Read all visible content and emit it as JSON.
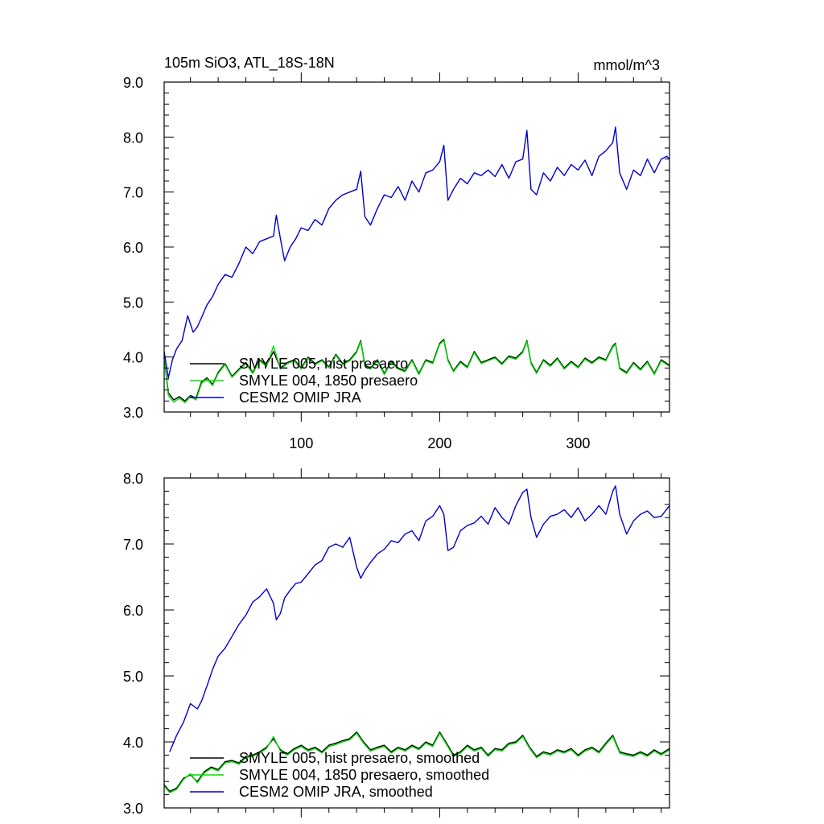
{
  "figure": {
    "title": "105m SiO3, ATL_18S-18N",
    "units": "mmol/m^3"
  },
  "colors": {
    "smyle005": "#000000",
    "smyle004": "#00dd00",
    "omip": "#0000cc"
  },
  "chart_data": [
    {
      "type": "line",
      "panel": "top",
      "xlim": [
        1,
        366
      ],
      "ylim": [
        3.0,
        9.0
      ],
      "x_ticks": [
        100,
        200,
        300
      ],
      "x_tick_labels": [
        "100",
        "200",
        "300"
      ],
      "y_ticks": [
        3,
        4,
        5,
        6,
        7,
        8,
        9
      ],
      "y_tick_labels": [
        "3.0",
        "4.0",
        "5.0",
        "6.0",
        "7.0",
        "8.0",
        "9.0"
      ],
      "legend_position": "lower-left",
      "series": [
        {
          "name": "SMYLE 005, hist presaero",
          "color_key": "smyle005",
          "x": [
            1,
            4,
            8,
            12,
            16,
            20,
            24,
            28,
            32,
            36,
            40,
            45,
            50,
            55,
            60,
            65,
            70,
            75,
            80,
            85,
            90,
            95,
            100,
            105,
            110,
            115,
            120,
            125,
            130,
            135,
            140,
            143,
            146,
            150,
            155,
            160,
            165,
            170,
            175,
            180,
            185,
            190,
            195,
            200,
            203,
            206,
            210,
            215,
            220,
            225,
            230,
            235,
            240,
            245,
            250,
            255,
            260,
            263,
            266,
            270,
            275,
            280,
            285,
            290,
            295,
            300,
            305,
            310,
            315,
            320,
            325,
            327,
            330,
            335,
            340,
            345,
            350,
            355,
            360,
            366
          ],
          "y": [
            4.0,
            3.35,
            3.22,
            3.28,
            3.2,
            3.3,
            3.25,
            3.55,
            3.62,
            3.5,
            3.72,
            3.88,
            3.65,
            3.78,
            3.9,
            3.72,
            3.95,
            3.85,
            4.1,
            3.8,
            3.9,
            3.95,
            3.8,
            4.0,
            3.88,
            3.95,
            3.82,
            4.05,
            3.88,
            3.95,
            4.1,
            4.3,
            3.85,
            3.8,
            3.95,
            3.7,
            3.92,
            3.8,
            3.75,
            3.95,
            3.7,
            3.95,
            3.9,
            4.25,
            4.32,
            3.95,
            3.75,
            3.92,
            3.82,
            4.1,
            3.9,
            3.95,
            4.0,
            3.88,
            4.02,
            3.98,
            4.1,
            4.3,
            3.9,
            3.72,
            3.95,
            3.85,
            3.98,
            3.8,
            3.92,
            3.82,
            3.98,
            3.9,
            4.0,
            3.95,
            4.2,
            4.25,
            3.8,
            3.72,
            3.9,
            3.78,
            3.92,
            3.7,
            3.95,
            3.85
          ]
        },
        {
          "name": "SMYLE 004, 1850 presaero",
          "color_key": "smyle004",
          "x": [
            1,
            4,
            8,
            12,
            16,
            20,
            24,
            28,
            32,
            36,
            40,
            45,
            50,
            55,
            60,
            65,
            70,
            75,
            80,
            85,
            90,
            95,
            100,
            105,
            110,
            115,
            120,
            125,
            130,
            135,
            140,
            143,
            146,
            150,
            155,
            160,
            165,
            170,
            175,
            180,
            185,
            190,
            195,
            200,
            203,
            206,
            210,
            215,
            220,
            225,
            230,
            235,
            240,
            245,
            250,
            255,
            260,
            263,
            266,
            270,
            275,
            280,
            285,
            290,
            295,
            300,
            305,
            310,
            315,
            320,
            325,
            327,
            330,
            335,
            340,
            345,
            350,
            355,
            360,
            366
          ],
          "y": [
            4.0,
            3.3,
            3.18,
            3.25,
            3.17,
            3.28,
            3.22,
            3.52,
            3.6,
            3.48,
            3.7,
            3.86,
            3.63,
            3.76,
            3.88,
            3.7,
            3.93,
            3.83,
            4.2,
            3.78,
            3.88,
            3.93,
            3.78,
            3.98,
            3.86,
            3.93,
            3.8,
            4.03,
            3.86,
            3.93,
            4.08,
            4.28,
            3.83,
            3.78,
            3.93,
            3.68,
            3.9,
            3.78,
            3.73,
            3.93,
            3.68,
            3.93,
            3.88,
            4.23,
            4.3,
            3.93,
            3.73,
            3.9,
            3.8,
            4.08,
            3.88,
            3.93,
            3.98,
            3.86,
            4.0,
            3.96,
            4.08,
            4.28,
            3.88,
            3.7,
            3.93,
            3.83,
            3.96,
            3.78,
            3.9,
            3.8,
            3.96,
            3.88,
            3.98,
            3.93,
            4.18,
            4.23,
            3.78,
            3.7,
            3.88,
            3.76,
            3.9,
            3.68,
            3.93,
            3.83
          ]
        },
        {
          "name": "CESM2 OMIP JRA",
          "color_key": "omip",
          "x": [
            1,
            4,
            7,
            10,
            14,
            18,
            22,
            25,
            28,
            32,
            36,
            40,
            45,
            50,
            55,
            60,
            65,
            70,
            75,
            80,
            82,
            85,
            88,
            92,
            96,
            100,
            105,
            110,
            115,
            120,
            125,
            130,
            135,
            140,
            143,
            146,
            150,
            155,
            160,
            165,
            170,
            175,
            180,
            185,
            190,
            195,
            200,
            203,
            206,
            210,
            215,
            220,
            225,
            230,
            235,
            240,
            245,
            250,
            255,
            260,
            263,
            266,
            270,
            275,
            280,
            285,
            290,
            295,
            300,
            305,
            310,
            315,
            320,
            325,
            327,
            330,
            335,
            340,
            345,
            350,
            355,
            360,
            364,
            366
          ],
          "y": [
            4.1,
            3.62,
            3.95,
            4.15,
            4.3,
            4.75,
            4.45,
            4.55,
            4.72,
            4.95,
            5.1,
            5.32,
            5.5,
            5.45,
            5.7,
            6.0,
            5.88,
            6.1,
            6.15,
            6.2,
            6.58,
            6.15,
            5.75,
            6.0,
            6.15,
            6.35,
            6.3,
            6.5,
            6.4,
            6.7,
            6.85,
            6.95,
            7.0,
            7.05,
            7.38,
            6.55,
            6.4,
            6.7,
            6.95,
            6.9,
            7.1,
            6.85,
            7.2,
            7.0,
            7.35,
            7.4,
            7.55,
            7.85,
            6.85,
            7.05,
            7.25,
            7.15,
            7.35,
            7.3,
            7.4,
            7.28,
            7.5,
            7.25,
            7.55,
            7.6,
            8.12,
            7.05,
            6.95,
            7.35,
            7.2,
            7.45,
            7.3,
            7.5,
            7.4,
            7.58,
            7.3,
            7.65,
            7.75,
            7.9,
            8.18,
            7.35,
            7.05,
            7.4,
            7.3,
            7.6,
            7.35,
            7.6,
            7.65,
            7.6
          ]
        }
      ]
    },
    {
      "type": "line",
      "panel": "bottom",
      "xlim": [
        1,
        366
      ],
      "ylim": [
        3.0,
        8.0
      ],
      "x_ticks": [
        100,
        200,
        300
      ],
      "y_ticks": [
        3,
        4,
        5,
        6,
        7,
        8
      ],
      "y_tick_labels": [
        "3.0",
        "4.0",
        "5.0",
        "6.0",
        "7.0",
        "8.0"
      ],
      "legend_position": "lower-left",
      "series": [
        {
          "name": "SMYLE 005, hist presaero, smoothed",
          "color_key": "smyle005",
          "x": [
            1,
            5,
            10,
            15,
            20,
            25,
            30,
            35,
            40,
            45,
            50,
            55,
            60,
            65,
            70,
            75,
            80,
            85,
            90,
            95,
            100,
            105,
            110,
            115,
            120,
            125,
            130,
            135,
            140,
            145,
            150,
            155,
            160,
            165,
            170,
            175,
            180,
            185,
            190,
            195,
            200,
            205,
            210,
            215,
            220,
            225,
            230,
            235,
            240,
            245,
            250,
            255,
            260,
            265,
            270,
            275,
            280,
            285,
            290,
            295,
            300,
            305,
            310,
            315,
            320,
            325,
            330,
            335,
            340,
            345,
            350,
            355,
            360,
            366
          ],
          "y": [
            3.35,
            3.25,
            3.3,
            3.45,
            3.5,
            3.4,
            3.55,
            3.62,
            3.58,
            3.7,
            3.72,
            3.68,
            3.78,
            3.8,
            3.85,
            3.92,
            4.05,
            3.88,
            3.82,
            3.9,
            3.95,
            3.88,
            3.92,
            3.85,
            3.95,
            3.98,
            4.02,
            4.05,
            4.15,
            4.0,
            3.88,
            3.92,
            3.95,
            3.85,
            3.92,
            3.88,
            3.95,
            3.9,
            4.0,
            3.95,
            4.15,
            3.98,
            3.8,
            3.85,
            3.95,
            3.88,
            3.92,
            3.8,
            3.9,
            3.88,
            3.98,
            4.0,
            4.1,
            3.92,
            3.78,
            3.85,
            3.82,
            3.88,
            3.85,
            3.9,
            3.8,
            3.88,
            3.92,
            3.85,
            3.98,
            4.1,
            3.85,
            3.82,
            3.8,
            3.85,
            3.8,
            3.88,
            3.82,
            3.9
          ]
        },
        {
          "name": "SMYLE 004, 1850 presaero, smoothed",
          "color_key": "smyle004",
          "x": [
            1,
            5,
            10,
            15,
            20,
            25,
            30,
            35,
            40,
            45,
            50,
            55,
            60,
            65,
            70,
            75,
            80,
            85,
            90,
            95,
            100,
            105,
            110,
            115,
            120,
            125,
            130,
            135,
            140,
            145,
            150,
            155,
            160,
            165,
            170,
            175,
            180,
            185,
            190,
            195,
            200,
            205,
            210,
            215,
            220,
            225,
            230,
            235,
            240,
            245,
            250,
            255,
            260,
            265,
            270,
            275,
            280,
            285,
            290,
            295,
            300,
            305,
            310,
            315,
            320,
            325,
            330,
            335,
            340,
            345,
            350,
            355,
            360,
            366
          ],
          "y": [
            3.33,
            3.23,
            3.28,
            3.43,
            3.52,
            3.38,
            3.53,
            3.6,
            3.56,
            3.68,
            3.7,
            3.66,
            3.76,
            3.78,
            3.83,
            3.9,
            4.08,
            3.86,
            3.8,
            3.88,
            3.93,
            3.86,
            3.9,
            3.83,
            3.93,
            3.96,
            4.0,
            4.03,
            4.13,
            3.98,
            3.86,
            3.9,
            3.93,
            3.83,
            3.9,
            3.86,
            3.93,
            3.88,
            3.98,
            3.93,
            4.13,
            3.96,
            3.78,
            3.83,
            3.93,
            3.86,
            3.9,
            3.78,
            3.88,
            3.86,
            3.96,
            3.98,
            4.08,
            3.9,
            3.76,
            3.83,
            3.8,
            3.86,
            3.83,
            3.88,
            3.78,
            3.86,
            3.9,
            3.83,
            3.96,
            4.08,
            3.83,
            3.8,
            3.78,
            3.83,
            3.78,
            3.86,
            3.8,
            3.88
          ]
        },
        {
          "name": "CESM2 OMIP JRA, smoothed",
          "color_key": "omip",
          "x": [
            5,
            10,
            15,
            20,
            25,
            28,
            32,
            36,
            40,
            45,
            50,
            55,
            60,
            65,
            70,
            75,
            80,
            82,
            85,
            88,
            92,
            96,
            100,
            105,
            110,
            115,
            120,
            125,
            130,
            135,
            140,
            143,
            146,
            150,
            155,
            160,
            165,
            170,
            175,
            180,
            185,
            190,
            195,
            200,
            203,
            206,
            210,
            215,
            220,
            225,
            230,
            235,
            240,
            245,
            250,
            255,
            260,
            263,
            266,
            270,
            275,
            280,
            285,
            290,
            295,
            300,
            305,
            310,
            315,
            320,
            325,
            327,
            330,
            335,
            340,
            345,
            350,
            355,
            360,
            366
          ],
          "y": [
            3.85,
            4.1,
            4.3,
            4.58,
            4.5,
            4.62,
            4.85,
            5.1,
            5.3,
            5.42,
            5.6,
            5.78,
            5.92,
            6.12,
            6.2,
            6.32,
            6.1,
            5.85,
            5.95,
            6.18,
            6.3,
            6.4,
            6.42,
            6.55,
            6.68,
            6.75,
            6.95,
            7.0,
            6.95,
            7.1,
            6.65,
            6.48,
            6.6,
            6.72,
            6.85,
            6.92,
            7.05,
            7.02,
            7.15,
            7.2,
            7.05,
            7.35,
            7.42,
            7.58,
            7.45,
            6.9,
            6.95,
            7.2,
            7.28,
            7.32,
            7.42,
            7.3,
            7.55,
            7.4,
            7.3,
            7.58,
            7.78,
            7.83,
            7.4,
            7.1,
            7.3,
            7.42,
            7.45,
            7.52,
            7.4,
            7.55,
            7.35,
            7.45,
            7.58,
            7.45,
            7.8,
            7.88,
            7.45,
            7.15,
            7.35,
            7.45,
            7.5,
            7.4,
            7.42,
            7.58
          ]
        }
      ]
    }
  ]
}
